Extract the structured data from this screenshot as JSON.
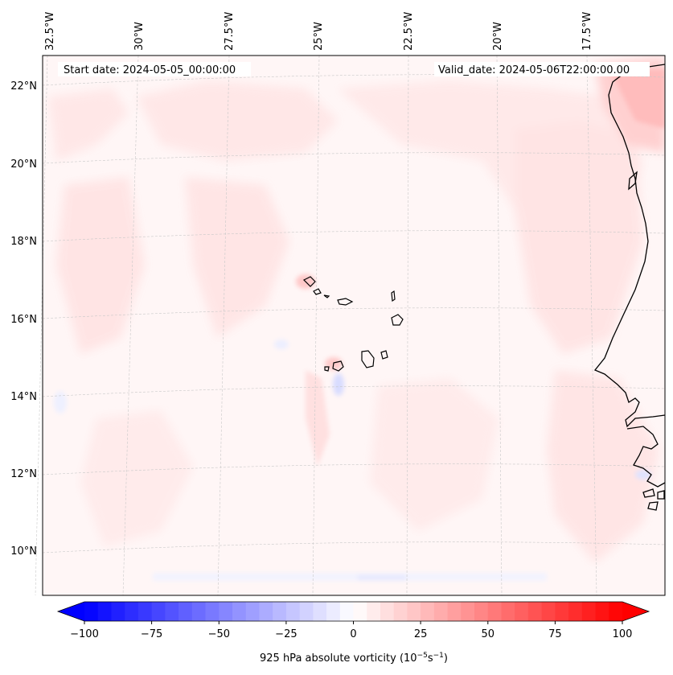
{
  "map": {
    "header_left": "Start date: 2024-05-05_00:00:00",
    "header_right": "Valid_date: 2024-05-06T22:00:00.00",
    "lon_labels": [
      "32.5°W",
      "30°W",
      "27.5°W",
      "25°W",
      "22.5°W",
      "20°W",
      "17.5°W"
    ],
    "lat_labels": [
      "22°N",
      "20°N",
      "18°N",
      "16°N",
      "14°N",
      "12°N",
      "10°N"
    ]
  },
  "colorbar": {
    "label_prefix": "925 hPa absolute vorticity (10",
    "label_exp1": "−5",
    "label_mid": "s",
    "label_exp2": "−1",
    "label_suffix": ")",
    "ticks": [
      "−100",
      "−75",
      "−50",
      "−25",
      "0",
      "25",
      "50",
      "75",
      "100"
    ],
    "min": -100,
    "max": 100,
    "neg_color": "#0000ff",
    "pos_color": "#ff0000"
  }
}
